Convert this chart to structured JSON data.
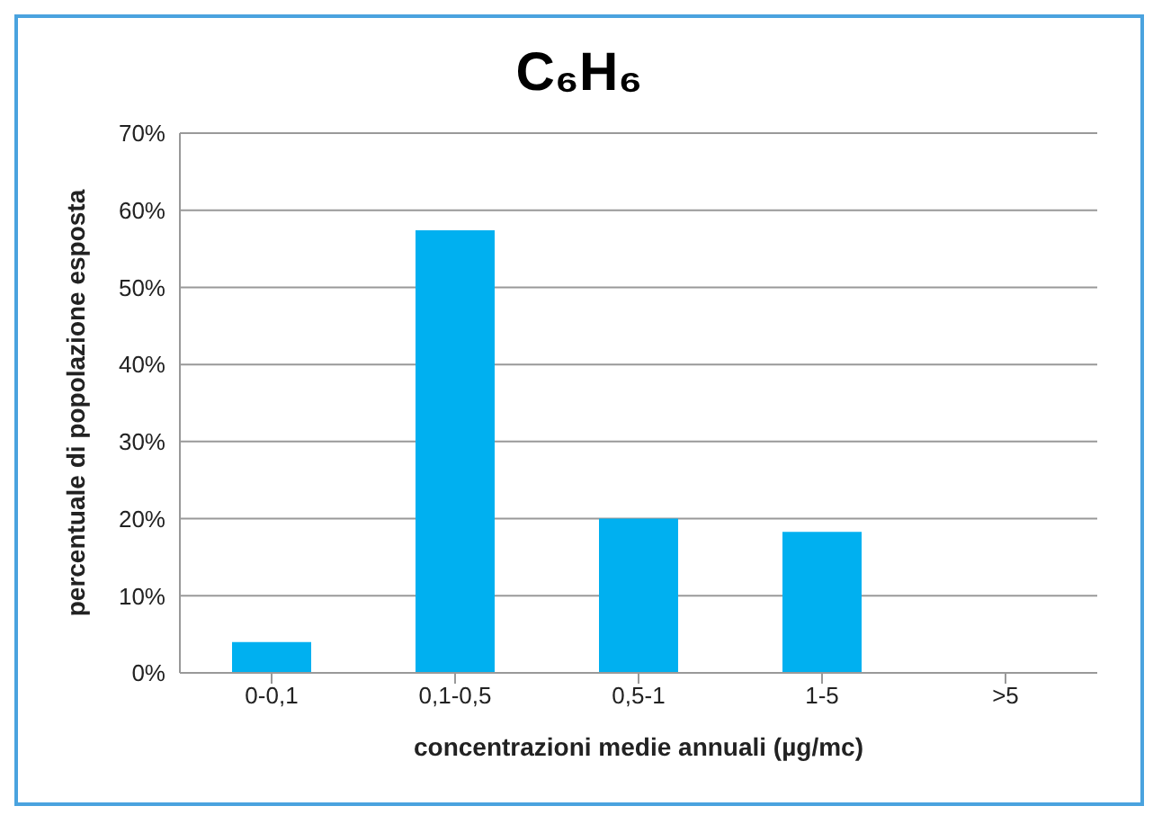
{
  "chart_data": {
    "type": "bar",
    "title": "C₆H₆",
    "xlabel": "concentrazioni medie annuali (µg/mc)",
    "ylabel": "percentuale di popolazione esposta",
    "categories": [
      "0-0,1",
      "0,1-0,5",
      "0,5-1",
      "1-5",
      ">5"
    ],
    "values": [
      4,
      57.4,
      20,
      18.3,
      0
    ],
    "color": "#00b0f0",
    "ylim": [
      0,
      70
    ],
    "yticks": [
      {
        "value": 0,
        "label": "0%"
      },
      {
        "value": 10,
        "label": "10%"
      },
      {
        "value": 20,
        "label": "20%"
      },
      {
        "value": 30,
        "label": "30%"
      },
      {
        "value": 40,
        "label": "40%"
      },
      {
        "value": 50,
        "label": "50%"
      },
      {
        "value": 60,
        "label": "60%"
      },
      {
        "value": 70,
        "label": "70%"
      }
    ],
    "grid": "y"
  }
}
